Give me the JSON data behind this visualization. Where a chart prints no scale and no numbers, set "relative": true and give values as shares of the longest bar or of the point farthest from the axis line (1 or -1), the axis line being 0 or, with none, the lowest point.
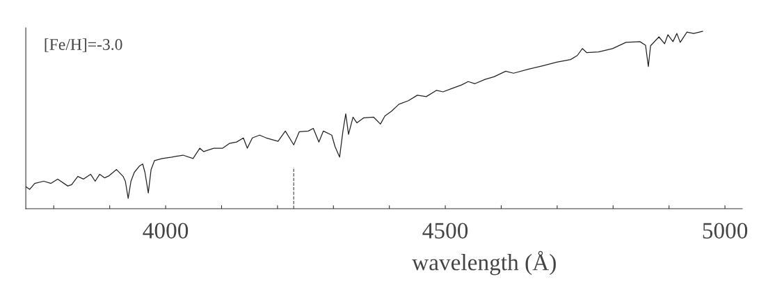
{
  "chart_data": {
    "type": "line",
    "relative": true,
    "xlabel": "wavelength (Å)",
    "annotations": [
      "[Fe/H]=-3.0"
    ],
    "xlim": [
      3750,
      5031
    ],
    "xticks": [
      {
        "value": 3800,
        "label": null
      },
      {
        "value": 3900,
        "label": null
      },
      4000,
      {
        "value": 4100,
        "label": null
      },
      {
        "value": 4200,
        "label": null
      },
      {
        "value": 4300,
        "label": null
      },
      {
        "value": 4400,
        "label": null
      },
      4500,
      {
        "value": 4600,
        "label": null
      },
      {
        "value": 4700,
        "label": null
      },
      {
        "value": 4800,
        "label": null
      },
      {
        "value": 4900,
        "label": null
      },
      5000
    ],
    "grid": false,
    "legend": false,
    "marker": "none",
    "line_style": "solid",
    "ref_lines": [
      {
        "axis": "x",
        "value": 4229,
        "line_style": "dashed",
        "color": "#555555"
      }
    ],
    "x": [
      3750,
      3757,
      3766,
      3782,
      3795,
      3807,
      3825,
      3832,
      3843,
      3853,
      3866,
      3874,
      3882,
      3891,
      3899,
      3912,
      3924,
      3928,
      3933,
      3938,
      3944,
      3953,
      3959,
      3963,
      3969,
      3974,
      3980,
      3994,
      4011,
      4031,
      4049,
      4061,
      4068,
      4086,
      4102,
      4114,
      4127,
      4139,
      4146,
      4155,
      4168,
      4180,
      4201,
      4214,
      4229,
      4239,
      4255,
      4264,
      4274,
      4282,
      4297,
      4303,
      4311,
      4317,
      4322,
      4327,
      4335,
      4342,
      4354,
      4372,
      4384,
      4392,
      4404,
      4417,
      4434,
      4450,
      4466,
      4484,
      4496,
      4512,
      4529,
      4541,
      4553,
      4571,
      4587,
      4608,
      4622,
      4649,
      4674,
      4699,
      4724,
      4736,
      4745,
      4753,
      4774,
      4799,
      4823,
      4848,
      4858,
      4863,
      4867,
      4882,
      4892,
      4898,
      4907,
      4914,
      4920,
      4932,
      4944,
      4960
    ],
    "series": [
      {
        "color": "#222222",
        "values": [
          0.124,
          0.109,
          0.143,
          0.155,
          0.143,
          0.167,
          0.128,
          0.136,
          0.182,
          0.167,
          0.194,
          0.155,
          0.194,
          0.174,
          0.186,
          0.221,
          0.182,
          0.155,
          0.058,
          0.155,
          0.205,
          0.24,
          0.252,
          0.205,
          0.089,
          0.221,
          0.271,
          0.283,
          0.291,
          0.302,
          0.283,
          0.341,
          0.322,
          0.341,
          0.341,
          0.368,
          0.376,
          0.399,
          0.341,
          0.399,
          0.415,
          0.399,
          0.38,
          0.438,
          0.36,
          0.434,
          0.438,
          0.453,
          0.376,
          0.438,
          0.415,
          0.349,
          0.291,
          0.438,
          0.535,
          0.419,
          0.516,
          0.484,
          0.512,
          0.516,
          0.477,
          0.523,
          0.55,
          0.589,
          0.609,
          0.64,
          0.632,
          0.667,
          0.659,
          0.678,
          0.698,
          0.717,
          0.705,
          0.729,
          0.744,
          0.775,
          0.764,
          0.787,
          0.806,
          0.826,
          0.841,
          0.864,
          0.903,
          0.88,
          0.884,
          0.903,
          0.938,
          0.942,
          0.922,
          0.802,
          0.919,
          0.969,
          0.93,
          0.981,
          0.942,
          0.988,
          0.938,
          0.996,
          0.988,
          1
        ]
      }
    ]
  }
}
